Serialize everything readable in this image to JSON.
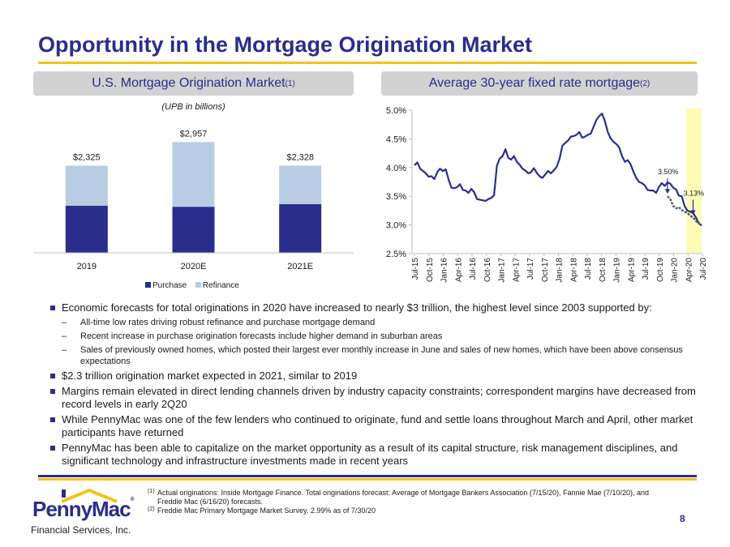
{
  "title": "Opportunity in the Mortgage Origination Market",
  "left_panel": {
    "header": "U.S. Mortgage Origination Market",
    "header_sup": "(1)",
    "subcaption": "(UPB in billions)"
  },
  "right_panel": {
    "header": "Average 30-year fixed rate mortgage",
    "header_sup": "(2)"
  },
  "chart_data": [
    {
      "type": "bar",
      "stacked": true,
      "categories": [
        "2019",
        "2020E",
        "2021E"
      ],
      "series": [
        {
          "name": "Purchase",
          "values": [
            1260,
            1230,
            1300
          ],
          "color": "#2a2d8c"
        },
        {
          "name": "Refinance",
          "values": [
            1065,
            1727,
            1028
          ],
          "color": "#b8cce4"
        }
      ],
      "totals": [
        2325,
        2957,
        2328
      ],
      "total_labels": [
        "$2,325",
        "$2,957",
        "$2,328"
      ],
      "ylim": [
        0,
        3200
      ],
      "legend": "bottom",
      "grid": false
    },
    {
      "type": "line",
      "x_ticks": [
        "Jul-15",
        "Oct-15",
        "Jan-16",
        "Apr-16",
        "Jul-16",
        "Oct-16",
        "Jan-17",
        "Apr-17",
        "Jul-17",
        "Oct-17",
        "Jan-18",
        "Apr-18",
        "Jul-18",
        "Oct-18",
        "Jan-19",
        "Apr-19",
        "Jul-19",
        "Oct-19",
        "Jan-20",
        "Apr-20",
        "Jul-20"
      ],
      "y_ticks": [
        "2.5%",
        "3.0%",
        "3.5%",
        "4.0%",
        "4.5%",
        "5.0%"
      ],
      "ylim": [
        2.5,
        5.0
      ],
      "series": [
        {
          "color": "#2a2d8c",
          "values": [
            4.04,
            4.09,
            3.98,
            3.94,
            3.9,
            3.84,
            3.85,
            3.8,
            3.92,
            3.98,
            3.94,
            3.97,
            3.79,
            3.65,
            3.64,
            3.66,
            3.71,
            3.61,
            3.6,
            3.56,
            3.63,
            3.57,
            3.45,
            3.44,
            3.43,
            3.42,
            3.45,
            3.47,
            3.52,
            4.03,
            4.16,
            4.2,
            4.32,
            4.17,
            4.14,
            4.2,
            4.1,
            4.05,
            3.98,
            3.95,
            3.9,
            3.92,
            3.99,
            3.91,
            3.85,
            3.82,
            3.88,
            3.94,
            3.9,
            3.95,
            4.01,
            4.15,
            4.38,
            4.43,
            4.47,
            4.54,
            4.55,
            4.57,
            4.62,
            4.52,
            4.54,
            4.57,
            4.59,
            4.71,
            4.83,
            4.9,
            4.94,
            4.81,
            4.62,
            4.51,
            4.45,
            4.41,
            4.35,
            4.2,
            4.1,
            4.13,
            4.06,
            3.93,
            3.82,
            3.75,
            3.73,
            3.69,
            3.61,
            3.6,
            3.6,
            3.56,
            3.66,
            3.73,
            3.68,
            3.74,
            3.72,
            3.65,
            3.62,
            3.51,
            3.5,
            3.33,
            3.25,
            3.23,
            3.21,
            3.13,
            3.03,
            2.99
          ]
        },
        {
          "color": "#4a5a7a",
          "values": [
            3.5,
            3.45,
            3.33,
            3.29,
            3.31,
            3.26,
            3.23,
            3.21,
            3.16,
            3.13,
            3.07,
            3.03,
            2.99
          ]
        }
      ],
      "highlight_band": {
        "from": "Apr-20",
        "to": "Jul-20",
        "color": "#fdfbb6"
      },
      "annotations": [
        {
          "label": "3.50%",
          "value": 3.5
        },
        {
          "label": "3.13%",
          "value": 3.13
        }
      ],
      "grid": false
    }
  ],
  "bullets": [
    {
      "level": 1,
      "text": "Economic forecasts for total originations in 2020 have increased to nearly $3 trillion, the highest level since 2003 supported by:"
    },
    {
      "level": 2,
      "text": "All-time low rates driving robust refinance and purchase mortgage demand"
    },
    {
      "level": 2,
      "text": "Recent increase in purchase origination forecasts include higher demand in suburban areas"
    },
    {
      "level": 2,
      "text": "Sales of previously owned homes, which posted their largest ever monthly increase in June and sales of new homes, which have been above consensus expectations"
    },
    {
      "level": 1,
      "text": "$2.3 trillion origination market expected in 2021, similar to 2019"
    },
    {
      "level": 1,
      "text": "Margins remain elevated in direct lending channels driven by industry capacity constraints; correspondent margins have decreased from record levels in early 2Q20"
    },
    {
      "level": 1,
      "text": "While PennyMac was one of the few lenders who continued to originate, fund and settle loans throughout March and April, other market participants have returned"
    },
    {
      "level": 1,
      "text": "PennyMac has been able to capitalize on the market opportunity as a result of its capital structure, risk management disciplines, and significant technology and infrastructure investments made in recent years"
    }
  ],
  "footnotes": [
    {
      "mark": "(1)",
      "text": "Actual originations: Inside Mortgage Finance. Total originations forecast: Average of Mortgage Bankers Association (7/15/20), Fannie Mae (7/10/20), and Freddie Mac (6/16/20) forecasts."
    },
    {
      "mark": "(2)",
      "text": "Freddie Mac Primary Mortgage Market Survey. 2.99% as of 7/30/20"
    }
  ],
  "logo": {
    "name": "PennyMac",
    "reg": "®",
    "subtitle": "Financial Services, Inc."
  },
  "page_number": "8"
}
